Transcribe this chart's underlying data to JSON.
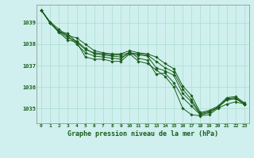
{
  "title": "Graphe pression niveau de la mer (hPa)",
  "bg_color": "#cff0ee",
  "grid_color": "#aaddcc",
  "line_color": "#1a5c1a",
  "spine_color": "#888888",
  "x_labels": [
    "0",
    "1",
    "2",
    "3",
    "4",
    "5",
    "6",
    "7",
    "8",
    "9",
    "10",
    "11",
    "12",
    "13",
    "14",
    "15",
    "16",
    "17",
    "18",
    "19",
    "20",
    "21",
    "22",
    "23"
  ],
  "ylim": [
    1034.3,
    1039.85
  ],
  "yticks": [
    1035,
    1036,
    1037,
    1038,
    1039
  ],
  "series": [
    [
      1039.6,
      1039.0,
      1038.6,
      1038.5,
      1038.1,
      1037.4,
      1037.3,
      1037.3,
      1037.2,
      1037.2,
      1037.55,
      1037.2,
      1037.1,
      1036.8,
      1036.5,
      1036.0,
      1035.0,
      1034.7,
      1034.65,
      1034.7,
      1035.0,
      1035.2,
      1035.3,
      1035.2
    ],
    [
      1039.6,
      1039.0,
      1038.6,
      1038.4,
      1038.0,
      1037.6,
      1037.45,
      1037.4,
      1037.35,
      1037.3,
      1037.65,
      1037.35,
      1037.25,
      1036.6,
      1036.65,
      1036.2,
      1035.5,
      1035.1,
      1034.7,
      1034.8,
      1035.05,
      1035.4,
      1035.45,
      1035.2
    ],
    [
      1039.6,
      1039.0,
      1038.6,
      1038.3,
      1038.15,
      1037.8,
      1037.55,
      1037.5,
      1037.45,
      1037.4,
      1037.55,
      1037.5,
      1037.45,
      1036.9,
      1036.75,
      1036.55,
      1035.7,
      1035.3,
      1034.7,
      1034.8,
      1035.05,
      1035.4,
      1035.45,
      1035.2
    ],
    [
      1039.6,
      1039.0,
      1038.55,
      1038.2,
      1038.1,
      1037.75,
      1037.6,
      1037.55,
      1037.5,
      1037.5,
      1037.6,
      1037.55,
      1037.5,
      1037.2,
      1036.9,
      1036.7,
      1035.9,
      1035.4,
      1034.75,
      1034.85,
      1035.05,
      1035.45,
      1035.5,
      1035.2
    ],
    [
      1039.6,
      1039.05,
      1038.7,
      1038.4,
      1038.3,
      1038.0,
      1037.7,
      1037.6,
      1037.55,
      1037.55,
      1037.7,
      1037.6,
      1037.55,
      1037.4,
      1037.1,
      1036.85,
      1036.05,
      1035.6,
      1034.8,
      1034.9,
      1035.1,
      1035.5,
      1035.55,
      1035.25
    ]
  ]
}
